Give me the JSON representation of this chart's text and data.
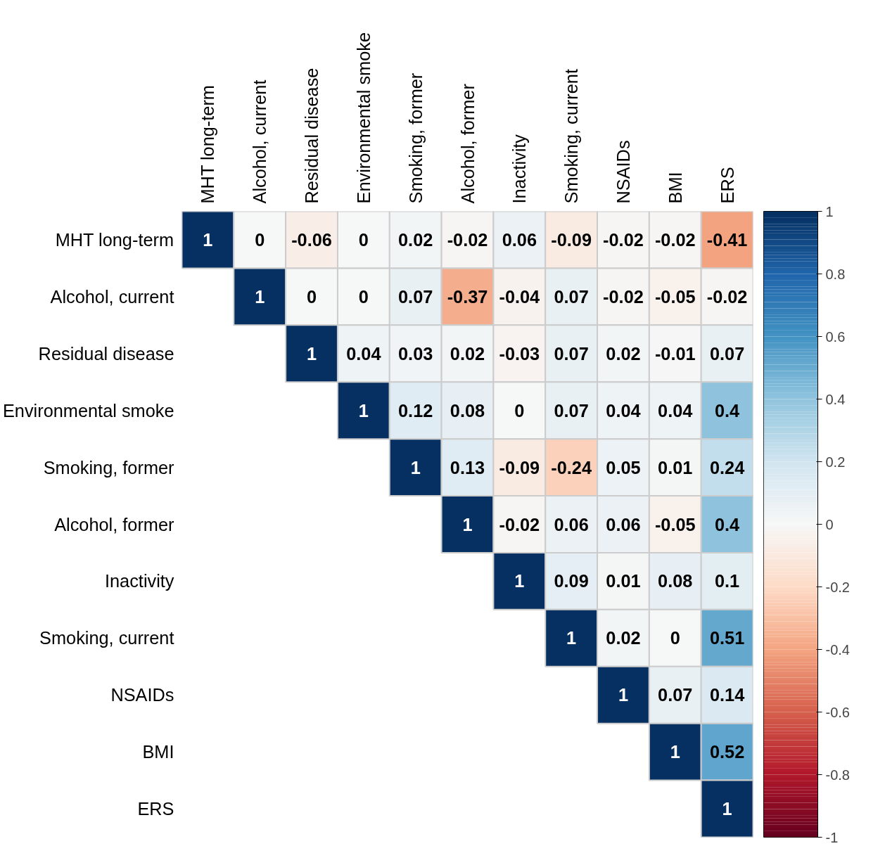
{
  "chart_data": {
    "type": "heatmap",
    "categories": [
      "MHT long-term",
      "Alcohol, current",
      "Residual disease",
      "Environmental smoke",
      "Smoking, former",
      "Alcohol, former",
      "Inactivity",
      "Smoking, current",
      "NSAIDs",
      "BMI",
      "ERS"
    ],
    "y_categories": [
      "MHT long-term",
      "Alcohol, current",
      "Residual disease",
      "Environmental smoke",
      "Smoking, former",
      "Alcohol, former",
      "Inactivity",
      "Smoking, current",
      "NSAIDs",
      "BMI",
      "ERS"
    ],
    "cells": [
      [
        1,
        0,
        -0.06,
        0,
        0.02,
        -0.02,
        0.06,
        -0.09,
        -0.02,
        -0.02,
        -0.41
      ],
      [
        null,
        1,
        0,
        0,
        0.07,
        -0.37,
        -0.04,
        0.07,
        -0.02,
        -0.05,
        -0.02
      ],
      [
        null,
        null,
        1,
        0.04,
        0.03,
        0.02,
        -0.03,
        0.07,
        0.02,
        -0.01,
        0.07
      ],
      [
        null,
        null,
        null,
        1,
        0.12,
        0.08,
        0,
        0.07,
        0.04,
        0.04,
        0.4
      ],
      [
        null,
        null,
        null,
        null,
        1,
        0.13,
        -0.09,
        -0.24,
        0.05,
        0.01,
        0.24
      ],
      [
        null,
        null,
        null,
        null,
        null,
        1,
        -0.02,
        0.06,
        0.06,
        -0.05,
        0.4
      ],
      [
        null,
        null,
        null,
        null,
        null,
        null,
        1,
        0.09,
        0.01,
        0.08,
        0.1
      ],
      [
        null,
        null,
        null,
        null,
        null,
        null,
        null,
        1,
        0.02,
        0,
        0.51
      ],
      [
        null,
        null,
        null,
        null,
        null,
        null,
        null,
        null,
        1,
        0.07,
        0.14
      ],
      [
        null,
        null,
        null,
        null,
        null,
        null,
        null,
        null,
        null,
        1,
        0.52
      ],
      [
        null,
        null,
        null,
        null,
        null,
        null,
        null,
        null,
        null,
        null,
        1
      ]
    ],
    "clim": [
      -1,
      1
    ],
    "cticks": [
      -1,
      -0.8,
      -0.6,
      -0.4,
      -0.2,
      0,
      0.2,
      0.4,
      0.6,
      0.8,
      1
    ],
    "data_labels": true
  }
}
